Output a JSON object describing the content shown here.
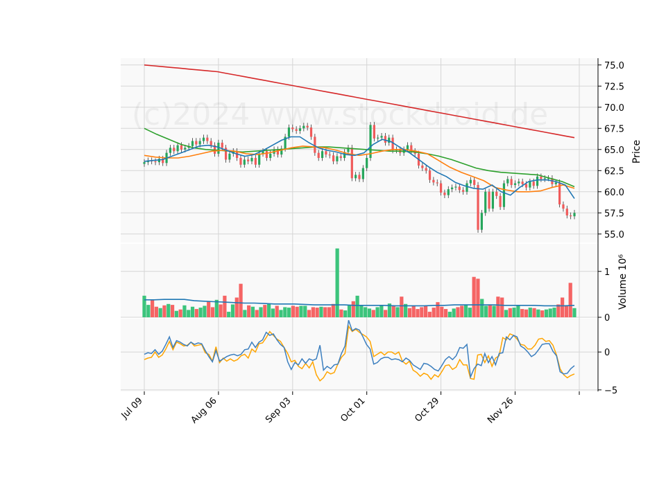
{
  "watermark": "(c)2024 www.stockdroid.de",
  "chart_data": {
    "type": "candlestick",
    "x_tick_labels": [
      "Jul 09",
      "Aug 06",
      "Sep 03",
      "Oct 01",
      "Oct 29",
      "Nov 26"
    ],
    "x_tick_indices": [
      0,
      20,
      40,
      60,
      80,
      100
    ],
    "price_panel": {
      "ylabel": "Price",
      "ylim": [
        54.0,
        75.8
      ],
      "yticks": [
        "55.0",
        "57.5",
        "60.0",
        "62.5",
        "65.0",
        "67.5",
        "70.0",
        "72.5",
        "75.0"
      ],
      "ytick_values": [
        55.0,
        57.5,
        60.0,
        62.5,
        65.0,
        67.5,
        70.0,
        72.5,
        75.0
      ],
      "up_color": "#26a65b",
      "down_color": "#f05a5a",
      "closes": [
        63.5,
        63.7,
        63.6,
        63.5,
        63.9,
        63.4,
        64.6,
        65.2,
        64.8,
        65.5,
        65.0,
        65.2,
        65.4,
        66.0,
        65.6,
        66.0,
        66.4,
        66.0,
        65.5,
        64.5,
        65.8,
        65.2,
        63.8,
        64.5,
        64.8,
        64.0,
        63.2,
        63.8,
        63.6,
        64.0,
        63.2,
        64.5,
        64.8,
        64.0,
        64.5,
        65.0,
        64.4,
        65.1,
        66.5,
        67.6,
        67.4,
        67.2,
        67.5,
        67.8,
        67.6,
        66.5,
        64.6,
        64.0,
        64.8,
        64.4,
        64.3,
        63.6,
        64.2,
        64.0,
        64.7,
        65.2,
        61.6,
        62.0,
        61.5,
        62.8,
        64.0,
        67.9,
        66.3,
        66.4,
        66.6,
        65.8,
        66.4,
        64.9,
        65.0,
        64.6,
        65.0,
        65.5,
        64.8,
        64.5,
        63.1,
        62.8,
        62.5,
        61.4,
        61.1,
        61.0,
        59.9,
        59.6,
        60.3,
        60.5,
        60.6,
        60.2,
        60.0,
        61.0,
        61.4,
        60.8,
        55.5,
        57.5,
        60.0,
        58.0,
        60.0,
        59.5,
        58.2,
        61.0,
        61.5,
        60.8,
        61.0,
        61.2,
        60.9,
        60.5,
        61.2,
        60.7,
        61.8,
        61.5,
        61.6,
        61.6,
        60.9,
        61.1,
        58.5,
        58.0,
        57.2,
        57.1,
        57.5
      ],
      "series": [
        {
          "name": "",
          "color": "#d62728",
          "values": [
            75.0,
            74.9,
            74.8,
            74.7,
            74.6,
            74.5,
            74.4,
            74.3,
            74.2,
            74.0,
            73.8,
            73.6,
            73.4,
            73.2,
            73.0,
            72.8,
            72.6,
            72.4,
            72.2,
            72.0,
            71.8,
            71.6,
            71.4,
            71.2,
            71.0,
            70.8,
            70.6,
            70.4,
            70.2,
            70.0,
            69.8,
            69.6,
            69.4,
            69.2,
            69.0,
            68.8,
            68.6,
            68.4,
            68.2,
            68.0,
            67.8,
            67.6,
            67.4,
            67.2,
            67.0,
            66.8,
            66.6,
            66.4
          ]
        },
        {
          "name": "",
          "color": "#2ca02c",
          "values": [
            67.5,
            66.8,
            66.2,
            65.6,
            65.2,
            65.0,
            64.9,
            64.8,
            64.7,
            64.8,
            64.9,
            65.0,
            65.1,
            65.2,
            65.3,
            65.3,
            65.2,
            65.1,
            65.0,
            64.9,
            64.8,
            64.8,
            64.7,
            64.5,
            64.2,
            63.8,
            63.3,
            62.8,
            62.5,
            62.3,
            62.2,
            62.1,
            62.0,
            61.6,
            61.2,
            60.6
          ]
        },
        {
          "name": "",
          "color": "#ff7f0e",
          "values": [
            64.3,
            64.1,
            64.0,
            64.0,
            64.2,
            64.5,
            64.8,
            64.9,
            64.8,
            64.5,
            64.4,
            64.6,
            64.9,
            65.2,
            65.4,
            65.3,
            65.2,
            64.9,
            64.5,
            64.3,
            64.5,
            64.8,
            65.0,
            65.0,
            64.8,
            64.5,
            63.7,
            62.9,
            62.3,
            61.8,
            61.3,
            60.5,
            60.2,
            60.0,
            60.0,
            60.1,
            60.5,
            60.8,
            60.4
          ]
        },
        {
          "name": "",
          "color": "#1f77b4",
          "values": [
            63.6,
            63.7,
            63.8,
            64.2,
            64.6,
            65.0,
            65.4,
            65.5,
            65.3,
            64.9,
            64.5,
            64.2,
            64.4,
            64.9,
            65.5,
            66.1,
            66.5,
            66.5,
            65.8,
            65.2,
            64.9,
            64.7,
            64.4,
            64.3,
            64.6,
            65.6,
            66.2,
            65.9,
            65.2,
            64.6,
            63.8,
            63.0,
            62.3,
            61.8,
            61.1,
            60.7,
            60.4,
            60.3,
            60.8,
            60.0,
            59.6,
            60.5,
            61.2,
            61.4,
            61.4,
            61.2,
            60.8,
            59.2
          ]
        }
      ]
    },
    "volume_panel": {
      "ylabel": "Volume  10⁶",
      "ylim": [
        0,
        1.6
      ],
      "yticks": [
        "0",
        "1"
      ],
      "ytick_values": [
        0,
        1
      ],
      "values": [
        0.47,
        0.27,
        0.37,
        0.23,
        0.2,
        0.26,
        0.29,
        0.27,
        0.14,
        0.17,
        0.26,
        0.16,
        0.23,
        0.18,
        0.21,
        0.25,
        0.35,
        0.22,
        0.38,
        0.28,
        0.47,
        0.12,
        0.28,
        0.43,
        0.73,
        0.16,
        0.26,
        0.23,
        0.16,
        0.22,
        0.27,
        0.3,
        0.19,
        0.25,
        0.16,
        0.22,
        0.21,
        0.25,
        0.23,
        0.25,
        0.25,
        0.16,
        0.22,
        0.21,
        0.23,
        0.22,
        0.22,
        0.29,
        1.5,
        0.17,
        0.15,
        0.27,
        0.35,
        0.47,
        0.25,
        0.22,
        0.19,
        0.16,
        0.22,
        0.25,
        0.16,
        0.3,
        0.26,
        0.22,
        0.45,
        0.29,
        0.2,
        0.25,
        0.18,
        0.22,
        0.25,
        0.12,
        0.21,
        0.33,
        0.23,
        0.18,
        0.12,
        0.19,
        0.22,
        0.25,
        0.28,
        0.21,
        0.88,
        0.84,
        0.4,
        0.25,
        0.28,
        0.25,
        0.45,
        0.43,
        0.16,
        0.2,
        0.21,
        0.25,
        0.18,
        0.17,
        0.21,
        0.2,
        0.17,
        0.15,
        0.17,
        0.19,
        0.21,
        0.28,
        0.43,
        0.26,
        0.75,
        0.2
      ],
      "ma_color": "#1f77b4",
      "ma": [
        0.38,
        0.38,
        0.39,
        0.39,
        0.39,
        0.36,
        0.35,
        0.34,
        0.33,
        0.32,
        0.31,
        0.31,
        0.3,
        0.29,
        0.29,
        0.29,
        0.28,
        0.27,
        0.27,
        0.27,
        0.27,
        0.26,
        0.26,
        0.26,
        0.26,
        0.25,
        0.25,
        0.25,
        0.25,
        0.26,
        0.26,
        0.27,
        0.27,
        0.27,
        0.27,
        0.27,
        0.26,
        0.26,
        0.26,
        0.26,
        0.25,
        0.25,
        0.25,
        0.26
      ]
    },
    "macd_panel": {
      "ylim": [
        -5.2,
        4.4
      ],
      "yticks": [
        "−5",
        "0"
      ],
      "ytick_values": [
        -5,
        0
      ],
      "macd_color": "#3c7fbf",
      "signal_color": "#ffa500",
      "macd": [
        -0.3,
        -0.1,
        -0.2,
        0.3,
        -0.3,
        0.1,
        1.0,
        2.0,
        0.6,
        1.5,
        1.3,
        1.0,
        0.8,
        1.3,
        1.0,
        1.2,
        1.1,
        0.2,
        -0.6,
        -1.3,
        0.2,
        -1.2,
        -0.9,
        -0.6,
        -0.4,
        -0.3,
        -0.5,
        -0.3,
        0.3,
        0.4,
        1.3,
        0.6,
        1.3,
        1.6,
        2.6,
        2.2,
        2.4,
        1.6,
        1.0,
        0.6,
        -1.3,
        -2.3,
        -1.4,
        -1.7,
        -0.9,
        -1.5,
        -0.9,
        -1.1,
        -0.9,
        0.9,
        -2.4,
        -1.9,
        -2.2,
        -1.7,
        -1.6,
        -0.2,
        0.8,
        4.2,
        2.8,
        3.1,
        2.9,
        2.0,
        1.0,
        0.4,
        -1.6,
        -1.4,
        -0.9,
        -0.7,
        -0.7,
        -1.0,
        -0.9,
        -1.0,
        -1.3,
        -0.8,
        -1.1,
        -1.7,
        -2.0,
        -2.3,
        -1.5,
        -1.6,
        -1.9,
        -2.3,
        -2.5,
        -1.8,
        -1.0,
        -0.6,
        -1.0,
        -0.5,
        0.6,
        0.5,
        1.0,
        -3.3,
        -2.2,
        -1.6,
        -1.8,
        -0.2,
        -1.4,
        -0.6,
        -1.7,
        -0.2,
        -0.1,
        2.0,
        1.6,
        2.2,
        2.0,
        0.8,
        0.5,
        0.0,
        -0.6,
        -0.3,
        0.3,
        1.0,
        1.1,
        1.1,
        0.1,
        -0.5,
        -2.6,
        -2.9,
        -2.8,
        -2.2,
        -1.8
      ],
      "signal": [
        -1.0,
        -0.8,
        -0.7,
        0.0,
        -0.7,
        -0.4,
        0.4,
        1.4,
        0.3,
        1.3,
        1.1,
        0.8,
        0.9,
        1.3,
        0.8,
        0.9,
        1.0,
        -0.1,
        -0.3,
        -1.2,
        0.7,
        -1.4,
        -0.8,
        -1.2,
        -0.9,
        -1.2,
        -1.0,
        -0.5,
        -0.3,
        -0.8,
        0.4,
        0.0,
        1.1,
        1.2,
        1.9,
        2.7,
        2.2,
        1.7,
        1.4,
        0.6,
        -0.2,
        -1.3,
        -1.1,
        -1.9,
        -2.2,
        -1.5,
        -2.1,
        -1.3,
        -3.0,
        -3.8,
        -3.4,
        -2.6,
        -2.9,
        -2.7,
        -1.6,
        -0.7,
        -0.2,
        3.4,
        2.7,
        3.0,
        2.6,
        2.3,
        2.0,
        1.4,
        -0.6,
        -0.3,
        0.0,
        -0.4,
        0.0,
        0.0,
        -0.3,
        0.0,
        -1.2,
        -1.6,
        -1.2,
        -2.4,
        -2.7,
        -3.2,
        -2.8,
        -3.0,
        -3.6,
        -3.0,
        -3.3,
        -2.6,
        -1.8,
        -1.7,
        -2.3,
        -2.0,
        -1.0,
        -1.7,
        -1.7,
        -3.5,
        -3.6,
        -0.4,
        -0.3,
        -1.4,
        -0.5,
        -1.9,
        -0.8,
        -0.5,
        1.9,
        1.6,
        2.4,
        2.2,
        1.7,
        1.0,
        0.9,
        0.4,
        0.4,
        0.9,
        1.7,
        1.8,
        1.4,
        1.5,
        0.9,
        -0.4,
        -2.2,
        -3.0,
        -3.4,
        -3.1,
        -2.9
      ]
    },
    "grid": true,
    "legend": "none"
  }
}
